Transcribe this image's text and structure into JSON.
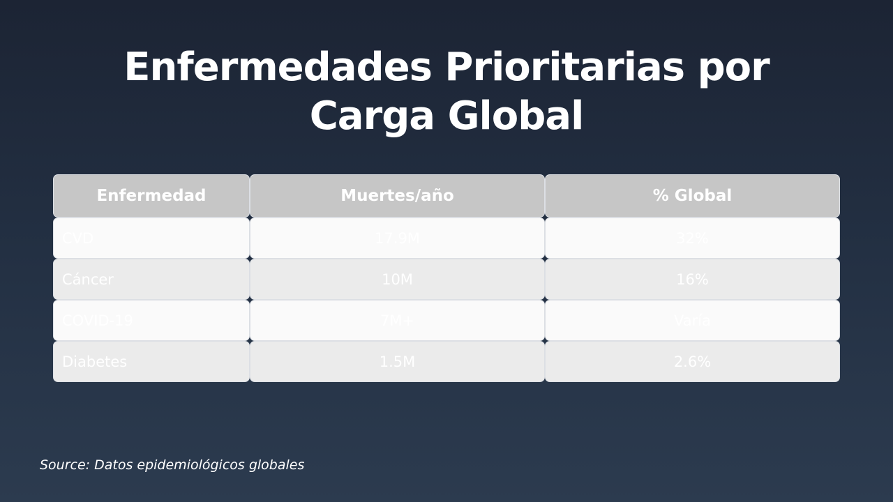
{
  "slide": {
    "title": "Enfermedades Prioritarias por Carga Global",
    "source": "Source: Datos epidemiológicos globales"
  },
  "table": {
    "headers": [
      "Enfermedad",
      "Muertes/año",
      "% Global"
    ],
    "rows": [
      [
        "CVD",
        "17.9M",
        "32%"
      ],
      [
        "Cáncer",
        "10M",
        "16%"
      ],
      [
        "COVID-19",
        "7M+",
        "Varía"
      ],
      [
        "Diabetes",
        "1.5M",
        "2.6%"
      ]
    ]
  },
  "colors": {
    "background_top": "#1c2434",
    "background_bottom": "#2c3b4f",
    "header_fill": "#c6c6c6",
    "row_light": "#fafafa",
    "row_dark": "#ebebeb",
    "text": "#ffffff"
  }
}
